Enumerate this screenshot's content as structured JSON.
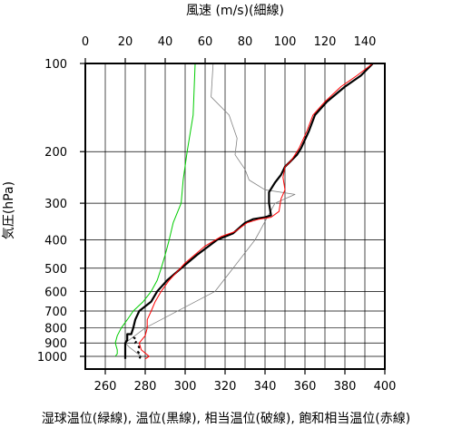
{
  "chart_data": {
    "type": "line",
    "title": "",
    "top_axis_label": "風速 (m/s)(細線)",
    "bottom_axis_label": "湿球温位(緑線), 温位(黒線), 相当温位(破線), 飽和相当温位(赤線)",
    "y_axis_label": "気圧(hPa)",
    "y_scale": "log",
    "y_reversed": true,
    "ylim": [
      1050,
      100
    ],
    "y_ticks": [
      100,
      200,
      300,
      400,
      500,
      600,
      700,
      800,
      900,
      1000
    ],
    "y_tick_labels": [
      "100",
      "200",
      "300",
      "400",
      "500",
      "600",
      "700",
      "800",
      "900",
      "1000"
    ],
    "bottom_xlim": [
      250,
      400
    ],
    "bottom_x_ticks": [
      260,
      280,
      300,
      320,
      340,
      360,
      380,
      400
    ],
    "bottom_x_tick_labels": [
      "260",
      "280",
      "300",
      "320",
      "340",
      "360",
      "380",
      "400"
    ],
    "top_xlim": [
      0,
      150
    ],
    "top_x_ticks": [
      0,
      20,
      40,
      60,
      80,
      100,
      120,
      140
    ],
    "top_x_tick_labels": [
      "0",
      "20",
      "40",
      "60",
      "80",
      "100",
      "120",
      "140"
    ],
    "grid": true,
    "series": [
      {
        "name": "風速",
        "color": "#808080",
        "axis": "top",
        "style": "thin",
        "points": [
          [
            64,
            100
          ],
          [
            63,
            130
          ],
          [
            72,
            150
          ],
          [
            76,
            180
          ],
          [
            75,
            205
          ],
          [
            80,
            230
          ],
          [
            82,
            250
          ],
          [
            90,
            270
          ],
          [
            105,
            280
          ],
          [
            95,
            300
          ],
          [
            85,
            400
          ],
          [
            65,
            600
          ],
          [
            30,
            800
          ],
          [
            20,
            900
          ],
          [
            22,
            930
          ],
          [
            28,
            1000
          ]
        ]
      },
      {
        "name": "湿球温位",
        "color": "#00cc00",
        "axis": "bottom",
        "style": "solid",
        "points": [
          [
            305,
            100
          ],
          [
            304,
            150
          ],
          [
            301,
            200
          ],
          [
            299,
            250
          ],
          [
            298,
            300
          ],
          [
            294,
            350
          ],
          [
            292,
            400
          ],
          [
            290,
            450
          ],
          [
            288,
            500
          ],
          [
            286,
            550
          ],
          [
            283,
            600
          ],
          [
            279,
            650
          ],
          [
            274,
            700
          ],
          [
            271,
            750
          ],
          [
            268,
            800
          ],
          [
            266,
            850
          ],
          [
            265,
            900
          ],
          [
            266,
            950
          ],
          [
            266,
            980
          ],
          [
            265,
            1000
          ]
        ]
      },
      {
        "name": "温位",
        "color": "#000000",
        "axis": "bottom",
        "style": "thick",
        "points": [
          [
            394,
            100
          ],
          [
            388,
            110
          ],
          [
            380,
            120
          ],
          [
            371,
            135
          ],
          [
            365,
            150
          ],
          [
            362,
            170
          ],
          [
            358,
            195
          ],
          [
            356,
            205
          ],
          [
            353,
            215
          ],
          [
            350,
            225
          ],
          [
            348,
            240
          ],
          [
            345,
            255
          ],
          [
            342,
            275
          ],
          [
            342,
            300
          ],
          [
            343,
            330
          ],
          [
            340,
            335
          ],
          [
            334,
            340
          ],
          [
            330,
            350
          ],
          [
            324,
            380
          ],
          [
            316,
            400
          ],
          [
            306,
            450
          ],
          [
            298,
            500
          ],
          [
            291,
            550
          ],
          [
            286,
            600
          ],
          [
            283,
            650
          ],
          [
            277,
            700
          ],
          [
            275,
            750
          ],
          [
            274,
            800
          ],
          [
            273,
            840
          ],
          [
            271,
            840
          ],
          [
            271,
            880
          ],
          [
            270,
            900
          ],
          [
            270,
            950
          ],
          [
            270,
            1000
          ],
          [
            270,
            1020
          ]
        ]
      },
      {
        "name": "相当温位",
        "color": "#000000",
        "axis": "bottom",
        "style": "dashed",
        "points": [
          [
            274,
            860
          ],
          [
            276,
            880
          ],
          [
            275,
            900
          ],
          [
            277,
            930
          ],
          [
            276,
            960
          ],
          [
            278,
            990
          ],
          [
            277,
            1020
          ]
        ]
      },
      {
        "name": "飽和相当温位",
        "color": "#ff0000",
        "axis": "bottom",
        "style": "solid",
        "points": [
          [
            394,
            100
          ],
          [
            386,
            110
          ],
          [
            378,
            120
          ],
          [
            370,
            135
          ],
          [
            364,
            150
          ],
          [
            361,
            170
          ],
          [
            357,
            195
          ],
          [
            355,
            205
          ],
          [
            353,
            215
          ],
          [
            350,
            225
          ],
          [
            349,
            245
          ],
          [
            350,
            270
          ],
          [
            348,
            290
          ],
          [
            347,
            320
          ],
          [
            343,
            335
          ],
          [
            337,
            340
          ],
          [
            331,
            350
          ],
          [
            325,
            375
          ],
          [
            318,
            390
          ],
          [
            310,
            420
          ],
          [
            300,
            480
          ],
          [
            292,
            550
          ],
          [
            288,
            600
          ],
          [
            285,
            650
          ],
          [
            283,
            700
          ],
          [
            281,
            750
          ],
          [
            281,
            800
          ],
          [
            280,
            850
          ],
          [
            277,
            900
          ],
          [
            278,
            950
          ],
          [
            282,
            1000
          ],
          [
            280,
            1020
          ]
        ]
      }
    ]
  }
}
